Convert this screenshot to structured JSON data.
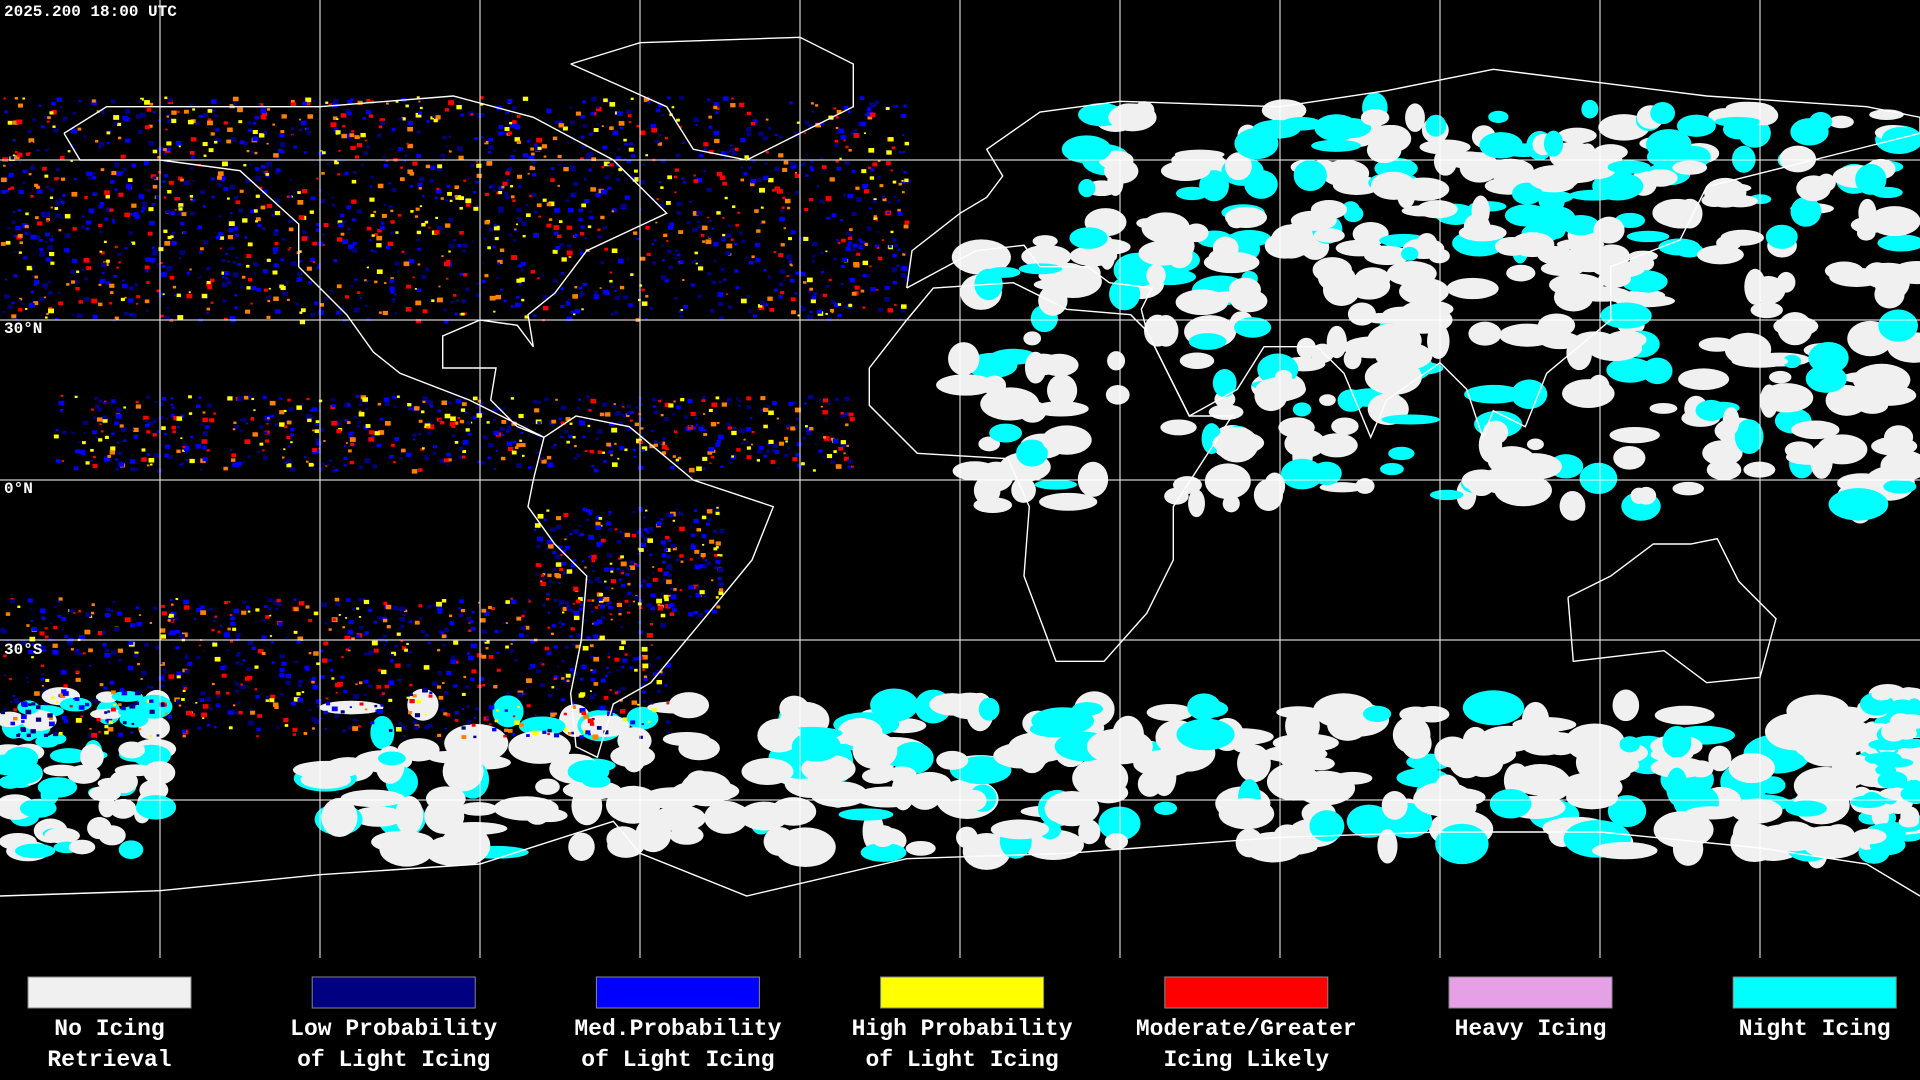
{
  "timestamp": "2025.200 18:00 UTC",
  "latitude_labels": [
    "30°N",
    "0°N",
    "30°S"
  ],
  "legend": [
    {
      "color": "#f0f0f0",
      "lines": [
        "No Icing",
        "Retrieval"
      ]
    },
    {
      "color": "#000080",
      "lines": [
        "Low Probability",
        "of Light Icing"
      ]
    },
    {
      "color": "#0000ff",
      "lines": [
        "Med.Probability",
        "of Light Icing"
      ]
    },
    {
      "color": "#ffff00",
      "lines": [
        "High Probability",
        "of Light Icing"
      ]
    },
    {
      "color": "#ff0000",
      "lines": [
        "Moderate/Greater",
        "Icing Likely"
      ]
    },
    {
      "color": "#e6a0e6",
      "lines": [
        "Heavy Icing"
      ]
    },
    {
      "color": "#00ffff",
      "lines": [
        "Night Icing"
      ]
    }
  ]
}
